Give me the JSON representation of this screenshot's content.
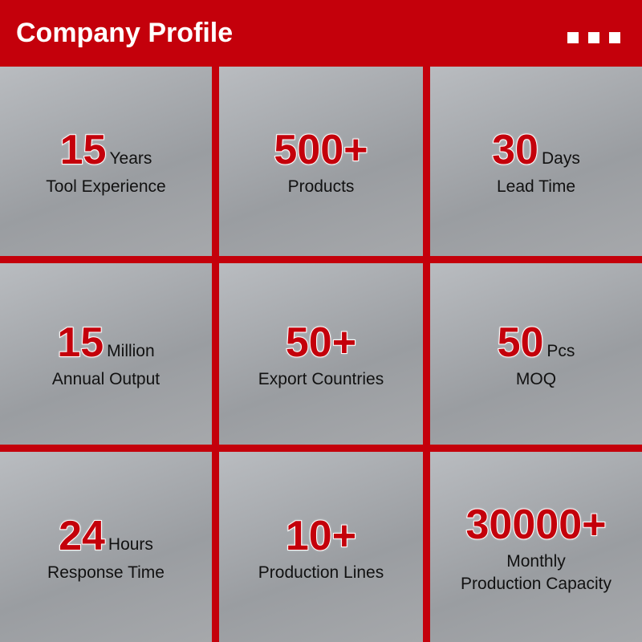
{
  "header": {
    "title": "Company Profile"
  },
  "cells": [
    {
      "number": "15",
      "unit": "Years",
      "lines": [
        "Tool Experience"
      ]
    },
    {
      "number": "500+",
      "lines": [
        "Products"
      ]
    },
    {
      "number": "30",
      "unit": "Days",
      "lines": [
        "Lead Time"
      ]
    },
    {
      "number": "15",
      "unit": "Million",
      "lines": [
        "Annual Output"
      ]
    },
    {
      "number": "50+",
      "lines": [
        "Export Countries"
      ]
    },
    {
      "number": "50",
      "unit": "Pcs",
      "lines": [
        "MOQ"
      ]
    },
    {
      "number": "24",
      "unit": "Hours",
      "lines": [
        "Response Time"
      ]
    },
    {
      "number": "10+",
      "lines": [
        "Production Lines"
      ]
    },
    {
      "number": "30000+",
      "lines": [
        "Monthly",
        "Production Capacity"
      ]
    }
  ]
}
